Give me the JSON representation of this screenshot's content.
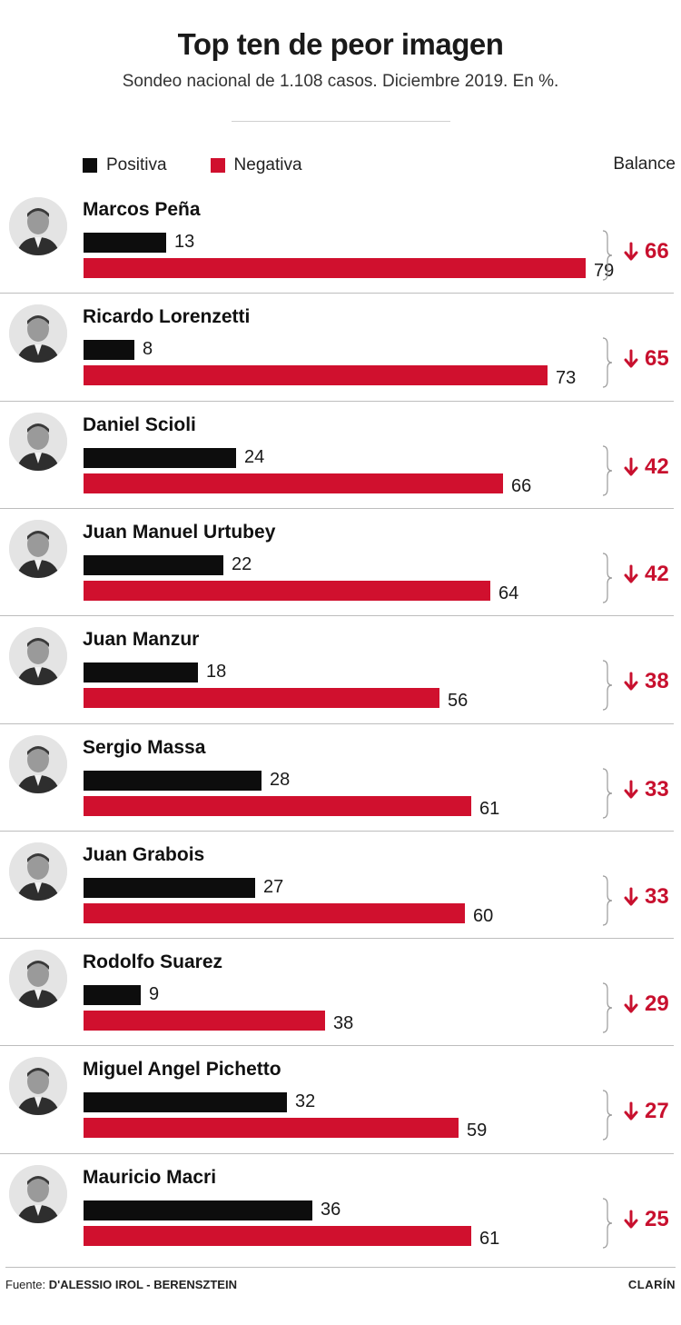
{
  "header": {
    "title": "Top ten de peor imagen",
    "subtitle": "Sondeo nacional de 1.108 casos. Diciembre 2019. En %."
  },
  "legend": {
    "positive_label": "Positiva",
    "negative_label": "Negativa",
    "balance_label": "Balance"
  },
  "colors": {
    "positive": "#0d0d0d",
    "negative": "#d0102e",
    "balance": "#c8102e"
  },
  "chart_data": {
    "type": "bar",
    "categories": [
      "Marcos Peña",
      "Ricardo Lorenzetti",
      "Daniel Scioli",
      "Juan Manuel Urtubey",
      "Juan Manzur",
      "Sergio Massa",
      "Juan Grabois",
      "Rodolfo Suarez",
      "Miguel Angel Pichetto",
      "Mauricio Macri"
    ],
    "series": [
      {
        "name": "Positiva",
        "values": [
          13,
          8,
          24,
          22,
          18,
          28,
          27,
          9,
          32,
          36
        ]
      },
      {
        "name": "Negativa",
        "values": [
          79,
          73,
          66,
          64,
          56,
          61,
          60,
          38,
          59,
          61
        ]
      }
    ],
    "balance": [
      66,
      65,
      42,
      42,
      38,
      33,
      33,
      29,
      27,
      25
    ],
    "title": "Top ten de peor imagen",
    "subtitle": "Sondeo nacional de 1.108 casos. Diciembre 2019. En %.",
    "xlim": [
      0,
      100
    ],
    "grid": false,
    "legend_position": "top-left"
  },
  "footer": {
    "source_prefix": "Fuente:",
    "source_name": "D'ALESSIO IROL - BERENSZTEIN",
    "brand": "CLARÍN"
  }
}
